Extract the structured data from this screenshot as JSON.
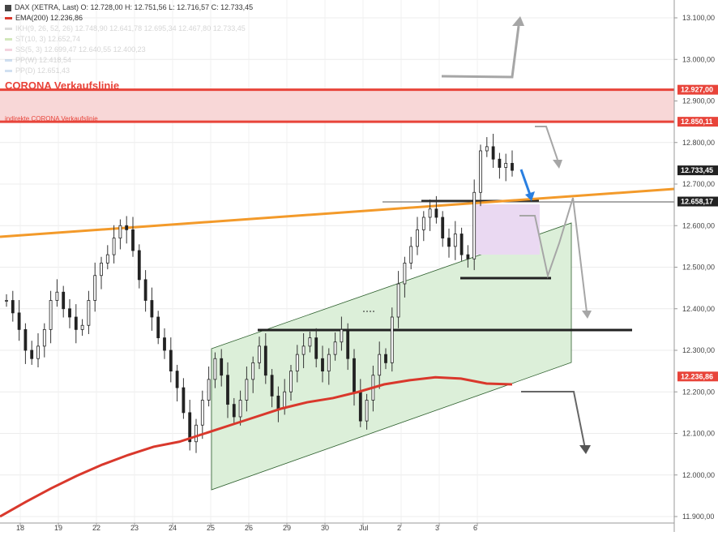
{
  "header": {
    "ohlc_text": "DAX (XETRA, Last)  O: 12.728,00  H: 12.751,56  L: 12.716,57  C: 12.733,45",
    "indicators": [
      {
        "label": "EMA(200)  12.236,86",
        "color": "#d9382c",
        "faded": false
      },
      {
        "label": "IKH(9, 26, 52, 26)  12.748,90  12.641,78  12.695,34  12.467,80  12.733,45",
        "color": "#9a9a9a",
        "faded": true
      },
      {
        "label": "ST(10, 3)  12.652,74",
        "color": "#7fbf3f",
        "faded": true
      },
      {
        "label": "SS(5, 3)  12.699,47  12.640,55  12.400,23",
        "color": "#e080a0",
        "faded": true
      },
      {
        "label": "PP(W)  12.418,54",
        "color": "#7aa8d8",
        "faded": true
      },
      {
        "label": "PP(D)  12.651,43",
        "color": "#7aa8d8",
        "faded": true
      }
    ]
  },
  "annotations": {
    "corona_title": "CORONA Verkaufslinie",
    "corona_sub": "indirekte CORONA Verkaufslinie"
  },
  "chart_data": {
    "type": "line",
    "instrument": "DAX (XETRA, Last)",
    "ylim": [
      11880,
      13140
    ],
    "y_ticks": [
      "11.900,00",
      "12.000,00",
      "12.100,00",
      "12.200,00",
      "12.300,00",
      "12.400,00",
      "12.500,00",
      "12.600,00",
      "12.700,00",
      "12.800,00",
      "12.900,00",
      "13.000,00",
      "13.100,00"
    ],
    "y_tick_values": [
      11900,
      12000,
      12100,
      12200,
      12300,
      12400,
      12500,
      12600,
      12700,
      12800,
      12900,
      13000,
      13100
    ],
    "x_labels": [
      "18",
      "19",
      "22",
      "23",
      "24",
      "25",
      "26",
      "29",
      "30",
      "Jul",
      "2",
      "3",
      "6"
    ],
    "price_badges": [
      {
        "label": "12.927,00",
        "value": 12927,
        "color": "#e8443a",
        "text": "#ffffff"
      },
      {
        "label": "12.850,11",
        "value": 12850,
        "color": "#e8443a",
        "text": "#ffffff"
      },
      {
        "label": "12.733,45",
        "value": 12733,
        "color": "#222222",
        "text": "#ffffff"
      },
      {
        "label": "12.658,17",
        "value": 12658,
        "color": "#222222",
        "text": "#ffffff"
      },
      {
        "label": "12.236,86",
        "value": 12237,
        "color": "#e8443a",
        "text": "#ffffff"
      }
    ],
    "close_series": [
      12420,
      12390,
      12350,
      12300,
      12280,
      12310,
      12350,
      12420,
      12440,
      12400,
      12380,
      12350,
      12360,
      12420,
      12480,
      12510,
      12530,
      12570,
      12600,
      12590,
      12540,
      12470,
      12420,
      12380,
      12330,
      12300,
      12250,
      12210,
      12150,
      12080,
      12120,
      12180,
      12230,
      12280,
      12240,
      12170,
      12140,
      12180,
      12230,
      12270,
      12310,
      12240,
      12190,
      12160,
      12200,
      12250,
      12290,
      12310,
      12330,
      12280,
      12250,
      12290,
      12320,
      12350,
      12280,
      12200,
      12130,
      12180,
      12240,
      12290,
      12270,
      12380,
      12460,
      12510,
      12550,
      12590,
      12620,
      12640,
      12620,
      12570,
      12550,
      12580,
      12530,
      12520,
      12680,
      12780,
      12790,
      12760,
      12740,
      12750,
      12733
    ],
    "ema200": [
      11900,
      11935,
      11968,
      11998,
      12025,
      12048,
      12068,
      12080,
      12100,
      12120,
      12140,
      12160,
      12175,
      12185,
      12200,
      12218,
      12228,
      12235,
      12232,
      12220,
      12218
    ],
    "colors": {
      "ema": "#d9382c",
      "resistance_band": "#f8d7d7",
      "resistance_line": "#e8443a",
      "trendline": "#f39a2a",
      "channel_fill": "#dcefd9",
      "purple_zone": "#ead9f2",
      "forecast": "#a6a6a6",
      "arrow_blue": "#2a7fe0"
    }
  }
}
